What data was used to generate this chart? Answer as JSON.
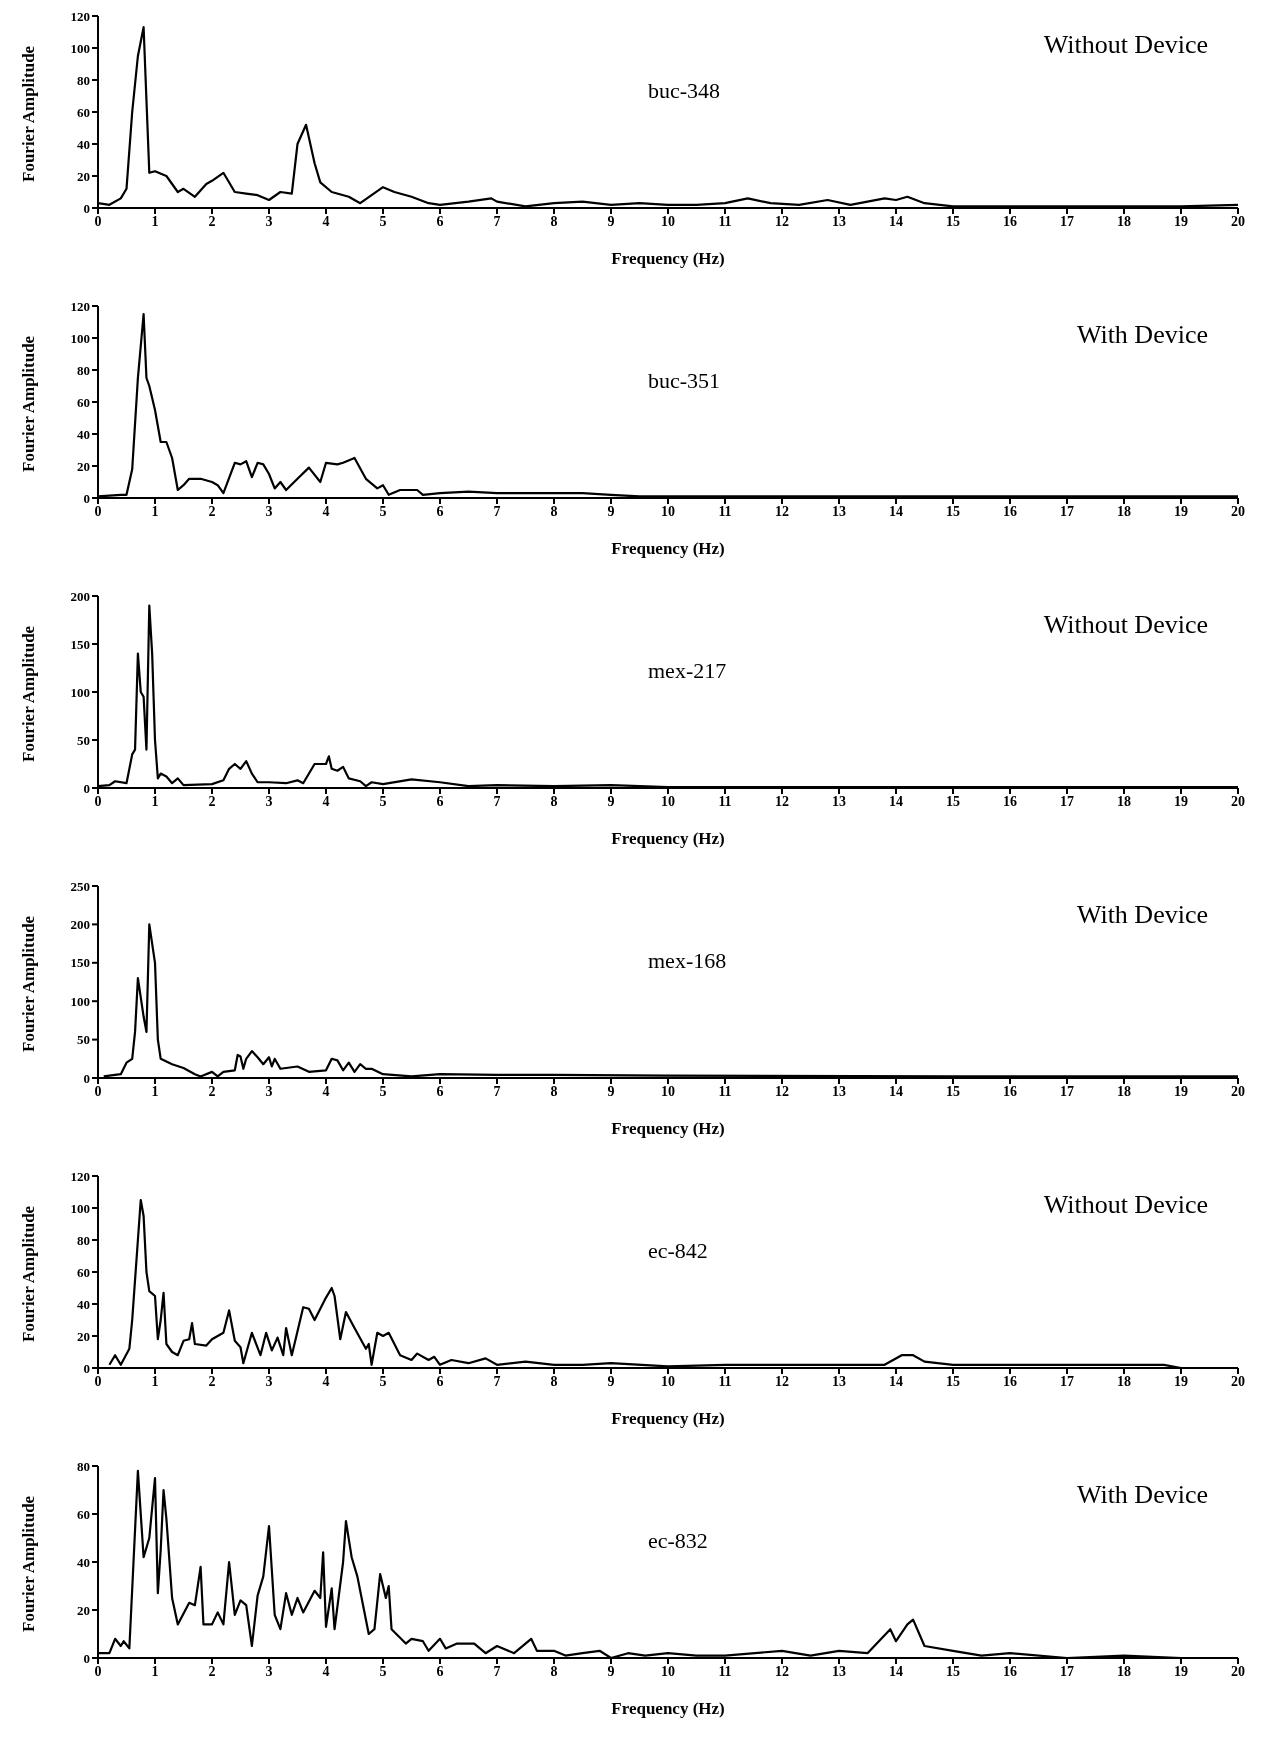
{
  "chart_data": [
    {
      "type": "line",
      "xlabel": "Frequency (Hz)",
      "ylabel": "Fourier Amplitude",
      "annotations": [
        "Without Device",
        "buc-348"
      ],
      "color": "#000000",
      "marker": "none",
      "grid": false,
      "xlim": [
        0,
        20
      ],
      "xticks": [
        0,
        1,
        2,
        3,
        4,
        5,
        6,
        7,
        8,
        9,
        10,
        11,
        12,
        13,
        14,
        15,
        16,
        17,
        18,
        19,
        20
      ],
      "ylim": [
        0,
        120
      ],
      "yticks": [
        0,
        20,
        40,
        60,
        80,
        100,
        120
      ],
      "x": [
        0,
        0.2,
        0.4,
        0.5,
        0.6,
        0.7,
        0.8,
        0.9,
        1.0,
        1.2,
        1.4,
        1.5,
        1.7,
        1.9,
        2.0,
        2.2,
        2.4,
        2.6,
        2.8,
        3.0,
        3.2,
        3.4,
        3.5,
        3.65,
        3.8,
        3.9,
        4.1,
        4.4,
        4.6,
        4.8,
        5.0,
        5.2,
        5.5,
        5.8,
        6.0,
        6.5,
        6.9,
        7.0,
        7.5,
        8,
        8.5,
        9,
        9.5,
        10,
        10.5,
        11,
        11.4,
        11.8,
        12.3,
        12.8,
        13.2,
        13.8,
        14,
        14.2,
        14.5,
        15,
        16,
        17,
        18,
        19,
        20
      ],
      "values": [
        3,
        2,
        6,
        12,
        60,
        95,
        113,
        22,
        23,
        20,
        10,
        12,
        7,
        15,
        17,
        22,
        10,
        9,
        8,
        5,
        10,
        9,
        40,
        52,
        28,
        16,
        10,
        7,
        3,
        8,
        13,
        10,
        7,
        3,
        2,
        4,
        6,
        4,
        1,
        3,
        4,
        2,
        3,
        2,
        2,
        3,
        6,
        3,
        2,
        5,
        2,
        6,
        5,
        7,
        3,
        1,
        1,
        1,
        1,
        1,
        2
      ]
    },
    {
      "type": "line",
      "xlabel": "Frequency (Hz)",
      "ylabel": "Fourier Amplitude",
      "annotations": [
        "With Device",
        "buc-351"
      ],
      "color": "#000000",
      "marker": "none",
      "grid": false,
      "xlim": [
        0,
        20
      ],
      "xticks": [
        0,
        1,
        2,
        3,
        4,
        5,
        6,
        7,
        8,
        9,
        10,
        11,
        12,
        13,
        14,
        15,
        16,
        17,
        18,
        19,
        20
      ],
      "ylim": [
        0,
        120
      ],
      "yticks": [
        0,
        20,
        40,
        60,
        80,
        100,
        120
      ],
      "x": [
        0,
        0.4,
        0.5,
        0.6,
        0.7,
        0.8,
        0.85,
        0.9,
        1.0,
        1.1,
        1.2,
        1.3,
        1.4,
        1.5,
        1.6,
        1.8,
        2.0,
        2.1,
        2.2,
        2.4,
        2.5,
        2.6,
        2.7,
        2.8,
        2.9,
        3.0,
        3.1,
        3.2,
        3.3,
        3.5,
        3.7,
        3.9,
        4.0,
        4.2,
        4.3,
        4.5,
        4.7,
        4.8,
        4.9,
        5.0,
        5.1,
        5.3,
        5.6,
        5.7,
        6,
        6.5,
        7,
        7.5,
        8,
        8.5,
        9,
        9.5,
        10,
        12,
        15,
        20
      ],
      "values": [
        1,
        2,
        2,
        18,
        75,
        115,
        75,
        70,
        55,
        35,
        35,
        25,
        5,
        8,
        12,
        12,
        10,
        8,
        3,
        22,
        21,
        23,
        13,
        22,
        21,
        15,
        6,
        10,
        5,
        12,
        19,
        10,
        22,
        21,
        22,
        25,
        12,
        9,
        6,
        8,
        2,
        5,
        5,
        2,
        3,
        4,
        3,
        3,
        3,
        3,
        2,
        1,
        1,
        1,
        1,
        1
      ]
    },
    {
      "type": "line",
      "xlabel": "Frequency (Hz)",
      "ylabel": "Fourier Amplitude",
      "annotations": [
        "Without Device",
        "mex-217"
      ],
      "color": "#000000",
      "marker": "none",
      "grid": false,
      "xlim": [
        0,
        20
      ],
      "xticks": [
        0,
        1,
        2,
        3,
        4,
        5,
        6,
        7,
        8,
        9,
        10,
        11,
        12,
        13,
        14,
        15,
        16,
        17,
        18,
        19,
        20
      ],
      "ylim": [
        0,
        200
      ],
      "yticks": [
        0,
        50,
        100,
        150,
        200
      ],
      "x": [
        0,
        0.2,
        0.3,
        0.5,
        0.6,
        0.65,
        0.7,
        0.75,
        0.8,
        0.85,
        0.9,
        0.95,
        1.0,
        1.05,
        1.1,
        1.2,
        1.3,
        1.4,
        1.5,
        2.0,
        2.2,
        2.3,
        2.4,
        2.5,
        2.6,
        2.7,
        2.8,
        3.0,
        3.3,
        3.5,
        3.6,
        3.8,
        4.0,
        4.05,
        4.1,
        4.2,
        4.3,
        4.4,
        4.6,
        4.7,
        4.8,
        5.0,
        5.5,
        6.0,
        6.5,
        7,
        8,
        9,
        10,
        12,
        15,
        20
      ],
      "values": [
        2,
        3,
        7,
        5,
        35,
        40,
        140,
        100,
        95,
        40,
        190,
        140,
        50,
        10,
        15,
        12,
        5,
        10,
        3,
        4,
        8,
        20,
        25,
        20,
        28,
        15,
        6,
        6,
        5,
        8,
        5,
        25,
        25,
        33,
        20,
        18,
        22,
        10,
        7,
        2,
        6,
        4,
        9,
        6,
        2,
        3,
        2,
        3,
        1,
        1,
        1,
        1
      ]
    },
    {
      "type": "line",
      "xlabel": "Frequency (Hz)",
      "ylabel": "Fourier Amplitude",
      "annotations": [
        "With Device",
        "mex-168"
      ],
      "color": "#000000",
      "marker": "none",
      "grid": false,
      "xlim": [
        0,
        20
      ],
      "xticks": [
        0,
        1,
        2,
        3,
        4,
        5,
        6,
        7,
        8,
        9,
        10,
        11,
        12,
        13,
        14,
        15,
        16,
        17,
        18,
        19,
        20
      ],
      "ylim": [
        0,
        250
      ],
      "yticks": [
        0,
        50,
        100,
        150,
        200,
        250
      ],
      "x": [
        0.1,
        0.4,
        0.5,
        0.6,
        0.65,
        0.7,
        0.8,
        0.85,
        0.9,
        1.0,
        1.05,
        1.1,
        1.3,
        1.5,
        1.7,
        1.8,
        2.0,
        2.1,
        2.2,
        2.4,
        2.45,
        2.5,
        2.55,
        2.6,
        2.7,
        2.8,
        2.9,
        3.0,
        3.05,
        3.1,
        3.2,
        3.5,
        3.7,
        4.0,
        4.1,
        4.2,
        4.3,
        4.4,
        4.5,
        4.6,
        4.7,
        4.8,
        5.0,
        5.5,
        6,
        7,
        8,
        10,
        15,
        20
      ],
      "values": [
        2,
        5,
        20,
        25,
        60,
        130,
        80,
        60,
        200,
        150,
        50,
        25,
        18,
        13,
        5,
        2,
        8,
        2,
        8,
        10,
        30,
        28,
        12,
        25,
        35,
        27,
        18,
        27,
        15,
        25,
        12,
        15,
        8,
        10,
        25,
        23,
        10,
        20,
        8,
        18,
        12,
        12,
        5,
        2,
        5,
        4,
        4,
        3,
        2,
        2
      ]
    },
    {
      "type": "line",
      "xlabel": "Frequency (Hz)",
      "ylabel": "Fourier Amplitude",
      "annotations": [
        "Without Device",
        "ec-842"
      ],
      "color": "#000000",
      "marker": "none",
      "grid": false,
      "xlim": [
        0,
        20
      ],
      "xticks": [
        0,
        1,
        2,
        3,
        4,
        5,
        6,
        7,
        8,
        9,
        10,
        11,
        12,
        13,
        14,
        15,
        16,
        17,
        18,
        19,
        20
      ],
      "ylim": [
        0,
        120
      ],
      "yticks": [
        0,
        20,
        40,
        60,
        80,
        100,
        120
      ],
      "x": [
        0.2,
        0.3,
        0.4,
        0.55,
        0.6,
        0.7,
        0.75,
        0.8,
        0.85,
        0.9,
        1.0,
        1.05,
        1.1,
        1.15,
        1.2,
        1.3,
        1.4,
        1.5,
        1.6,
        1.65,
        1.7,
        1.9,
        2.0,
        2.2,
        2.3,
        2.4,
        2.5,
        2.55,
        2.7,
        2.85,
        2.95,
        3.05,
        3.15,
        3.25,
        3.3,
        3.4,
        3.6,
        3.7,
        3.8,
        4.0,
        4.1,
        4.15,
        4.25,
        4.35,
        4.5,
        4.7,
        4.75,
        4.8,
        4.9,
        5.0,
        5.1,
        5.3,
        5.5,
        5.6,
        5.8,
        5.9,
        6.0,
        6.2,
        6.5,
        6.8,
        7.0,
        7.5,
        8,
        8.5,
        9,
        10,
        11,
        12,
        13,
        13.8,
        14.1,
        14.3,
        14.5,
        15,
        16,
        17,
        18,
        18.7,
        19,
        20
      ],
      "values": [
        2,
        8,
        2,
        12,
        30,
        80,
        105,
        95,
        60,
        48,
        45,
        18,
        30,
        47,
        15,
        10,
        8,
        17,
        18,
        28,
        15,
        14,
        18,
        22,
        36,
        17,
        13,
        3,
        22,
        8,
        22,
        11,
        19,
        8,
        25,
        8,
        38,
        37,
        30,
        44,
        50,
        45,
        18,
        35,
        25,
        12,
        15,
        2,
        22,
        20,
        22,
        8,
        5,
        9,
        5,
        7,
        2,
        5,
        3,
        6,
        2,
        4,
        2,
        2,
        3,
        1,
        2,
        2,
        2,
        2,
        8,
        8,
        4,
        2,
        2,
        2,
        2,
        2,
        0,
        0
      ]
    },
    {
      "type": "line",
      "xlabel": "Frequency (Hz)",
      "ylabel": "Fourier Amplitude",
      "annotations": [
        "With Device",
        "ec-832"
      ],
      "color": "#000000",
      "marker": "none",
      "grid": false,
      "xlim": [
        0,
        20
      ],
      "xticks": [
        0,
        1,
        2,
        3,
        4,
        5,
        6,
        7,
        8,
        9,
        10,
        11,
        12,
        13,
        14,
        15,
        16,
        17,
        18,
        19,
        20
      ],
      "ylim": [
        0,
        80
      ],
      "yticks": [
        0,
        20,
        40,
        60,
        80
      ],
      "x": [
        0,
        0.2,
        0.3,
        0.4,
        0.45,
        0.55,
        0.7,
        0.8,
        0.9,
        1.0,
        1.05,
        1.1,
        1.15,
        1.2,
        1.3,
        1.4,
        1.6,
        1.7,
        1.8,
        1.85,
        2.0,
        2.1,
        2.2,
        2.3,
        2.4,
        2.5,
        2.6,
        2.7,
        2.8,
        2.9,
        3.0,
        3.1,
        3.2,
        3.3,
        3.4,
        3.5,
        3.6,
        3.8,
        3.9,
        3.95,
        4.0,
        4.1,
        4.15,
        4.3,
        4.35,
        4.45,
        4.55,
        4.65,
        4.75,
        4.85,
        4.95,
        5.05,
        5.1,
        5.15,
        5.4,
        5.5,
        5.7,
        5.8,
        6.0,
        6.1,
        6.3,
        6.6,
        6.8,
        7.0,
        7.3,
        7.6,
        7.7,
        8.0,
        8.2,
        8.5,
        8.8,
        9,
        9.3,
        9.6,
        10,
        10.5,
        11,
        12,
        12.5,
        13,
        13.5,
        13.9,
        14.0,
        14.2,
        14.3,
        14.5,
        15,
        15.5,
        16,
        17,
        18,
        19,
        20
      ],
      "values": [
        2,
        2,
        8,
        5,
        7,
        4,
        78,
        42,
        50,
        75,
        27,
        45,
        70,
        58,
        25,
        14,
        23,
        22,
        38,
        14,
        14,
        19,
        14,
        40,
        18,
        24,
        22,
        5,
        26,
        34,
        55,
        18,
        12,
        27,
        18,
        25,
        19,
        28,
        25,
        44,
        13,
        29,
        12,
        40,
        57,
        42,
        34,
        22,
        10,
        12,
        35,
        25,
        30,
        12,
        6,
        8,
        7,
        3,
        8,
        4,
        6,
        6,
        2,
        5,
        2,
        8,
        3,
        3,
        1,
        2,
        3,
        0,
        2,
        1,
        2,
        1,
        1,
        3,
        1,
        3,
        2,
        12,
        7,
        14,
        16,
        5,
        3,
        1,
        2,
        0,
        1,
        0,
        0
      ]
    }
  ]
}
